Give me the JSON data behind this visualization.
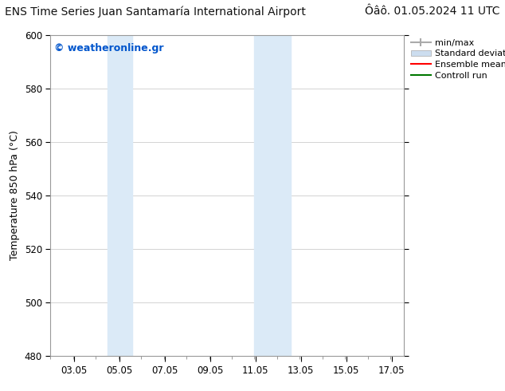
{
  "title_left": "ENS Time Series Juan Santamaría International Airport",
  "title_right": "Ôâô. 01.05.2024 11 UTC",
  "ylabel": "Temperature 850 hPa (°C)",
  "xlim_start": 2.0,
  "xlim_end": 17.6,
  "ylim_min": 480,
  "ylim_max": 600,
  "yticks": [
    480,
    500,
    520,
    540,
    560,
    580,
    600
  ],
  "xtick_labels": [
    "03.05",
    "05.05",
    "07.05",
    "09.05",
    "11.05",
    "13.05",
    "15.05",
    "17.05"
  ],
  "xtick_positions": [
    3.05,
    5.05,
    7.05,
    9.05,
    11.05,
    13.05,
    15.05,
    17.05
  ],
  "shaded_bands": [
    {
      "x_start": 4.5,
      "x_end": 5.6,
      "color": "#dbeaf7"
    },
    {
      "x_start": 11.0,
      "x_end": 12.6,
      "color": "#dbeaf7"
    }
  ],
  "background_color": "#ffffff",
  "plot_bg_color": "#ffffff",
  "grid_color": "#cccccc",
  "watermark_text": "© weatheronline.gr",
  "watermark_color": "#0055cc",
  "legend_entries": [
    {
      "label": "min/max",
      "color": "#aaaaaa",
      "lw": 1.5
    },
    {
      "label": "Standard deviation",
      "color": "#ccddef",
      "lw": 8
    },
    {
      "label": "Ensemble mean run",
      "color": "#ff0000",
      "lw": 1.5
    },
    {
      "label": "Controll run",
      "color": "#007700",
      "lw": 1.5
    }
  ],
  "border_color": "#999999",
  "title_fontsize": 10,
  "axis_label_fontsize": 9,
  "tick_fontsize": 8.5,
  "legend_fontsize": 8,
  "watermark_fontsize": 9
}
